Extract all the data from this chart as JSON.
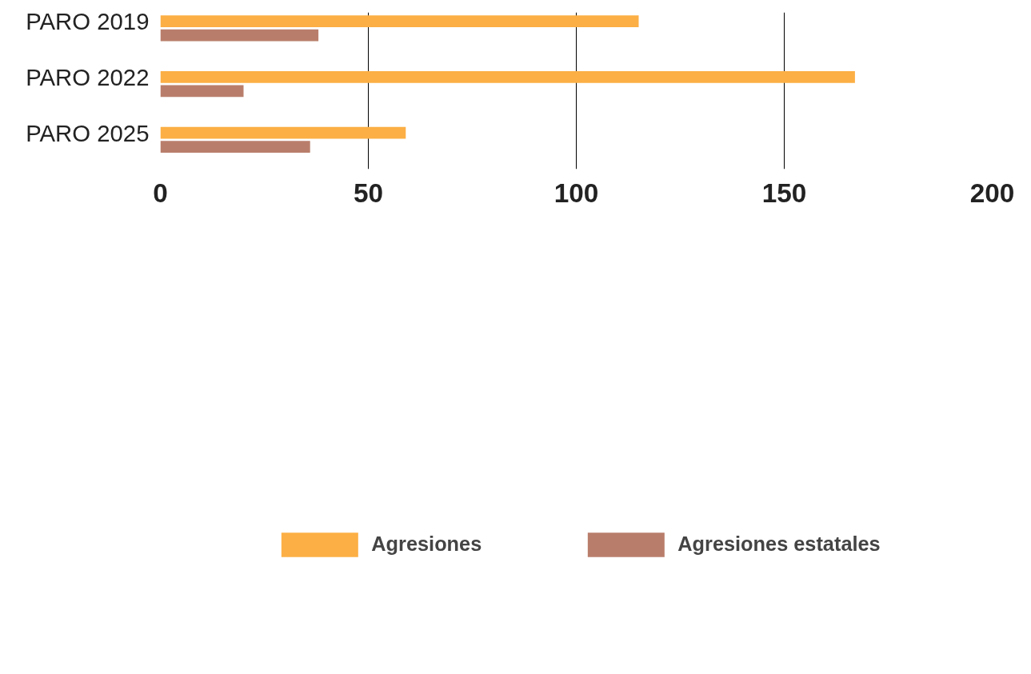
{
  "chart_data": {
    "type": "bar",
    "orientation": "horizontal",
    "categories": [
      "PARO 2019",
      "PARO 2022",
      "PARO 2025"
    ],
    "series": [
      {
        "name": "Agresiones",
        "color": "#fcaf45",
        "values": [
          115,
          167,
          59
        ]
      },
      {
        "name": "Agresiones estatales",
        "color": "#b97e6b",
        "values": [
          38,
          20,
          36
        ]
      }
    ],
    "xlim": [
      0,
      200
    ],
    "xticks": [
      0,
      50,
      100,
      150,
      200
    ],
    "grid": "x",
    "legend": "bottom"
  }
}
